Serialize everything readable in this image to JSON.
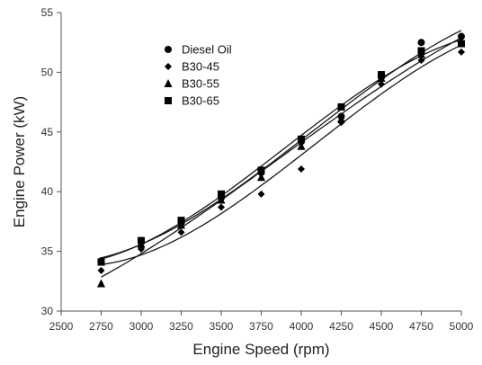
{
  "chart_data": {
    "type": "line",
    "title": "",
    "xlabel": "Engine Speed (rpm)",
    "ylabel": "Engine Power (kW)",
    "xlim": [
      2500,
      5000
    ],
    "ylim": [
      30,
      55
    ],
    "xticks": [
      2500,
      2750,
      3000,
      3250,
      3500,
      3750,
      4000,
      4250,
      4500,
      4750,
      5000
    ],
    "yticks": [
      30,
      35,
      40,
      45,
      50,
      55
    ],
    "grid": false,
    "legend": "top-left",
    "x": [
      2750,
      3000,
      3250,
      3500,
      3750,
      4000,
      4250,
      4500,
      4750,
      5000
    ],
    "series": [
      {
        "name": "Diesel Oil",
        "marker": "circle",
        "values": [
          34.2,
          35.9,
          37.4,
          39.5,
          41.6,
          44.2,
          46.3,
          49.6,
          52.5,
          53.0
        ]
      },
      {
        "name": "B30-45",
        "marker": "diamond",
        "values": [
          33.4,
          35.2,
          36.6,
          38.7,
          39.8,
          41.9,
          45.8,
          49.0,
          51.0,
          51.7
        ]
      },
      {
        "name": "B30-55",
        "marker": "triangle",
        "values": [
          32.3,
          35.6,
          37.2,
          39.3,
          41.2,
          43.8,
          46.1,
          49.5,
          51.5,
          52.4
        ]
      },
      {
        "name": "B30-65",
        "marker": "square",
        "values": [
          34.1,
          35.9,
          37.6,
          39.8,
          41.8,
          44.4,
          47.1,
          49.8,
          51.8,
          52.4
        ]
      }
    ]
  }
}
